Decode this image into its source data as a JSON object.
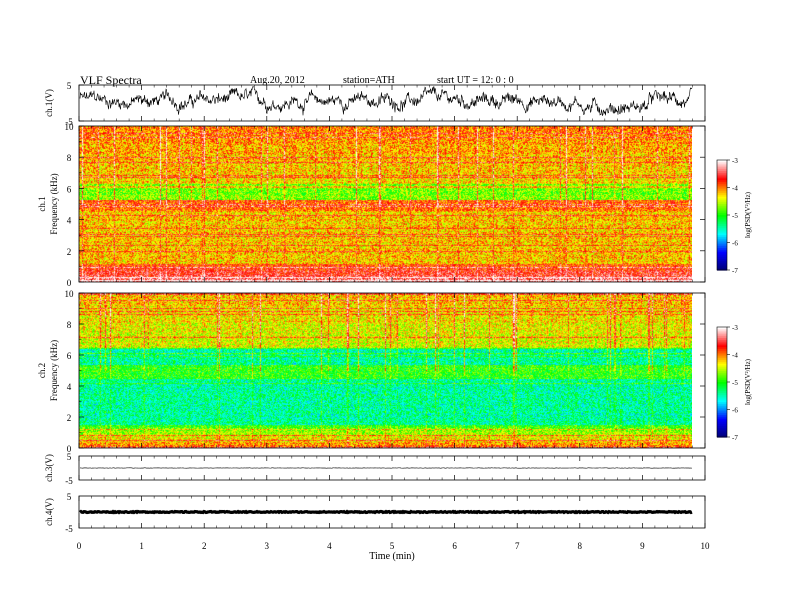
{
  "header": {
    "title": "VLF  Spectra",
    "date": "Aug.20, 2012",
    "station": "station=ATH",
    "start": "start  UT  =    12: 0   : 0"
  },
  "chart_data": [
    {
      "type": "line",
      "panel": "ch1-waveform",
      "ylabel": "ch.1(V)",
      "yticks": [
        "5",
        "-5"
      ],
      "ylim": [
        -5,
        5
      ],
      "trace_color": "#000000",
      "description_values": {
        "x_range_min": [
          0,
          9.8
        ],
        "approx_amplitude_V": [
          -3,
          4
        ]
      }
    },
    {
      "type": "heatmap",
      "panel": "ch1-spectrogram",
      "ylabel_channel": "ch.1",
      "ylabel": "Frequency  (kHz)",
      "yticks": [
        "0",
        "2",
        "4",
        "6",
        "8",
        "10"
      ],
      "ylim": [
        0,
        10
      ],
      "xlim": [
        0,
        9.8
      ],
      "zlabel": "log(PSD(V²/Hz)",
      "zlim": [
        -7,
        -3
      ],
      "zticks": [
        "-3",
        "-4",
        "-5",
        "-6",
        "-7"
      ]
    },
    {
      "type": "heatmap",
      "panel": "ch2-spectrogram",
      "ylabel_channel": "ch.2",
      "ylabel": "Frequency  (kHz)",
      "yticks": [
        "0",
        "2",
        "4",
        "6",
        "8",
        "10"
      ],
      "ylim": [
        0,
        10
      ],
      "xlim": [
        0,
        9.8
      ],
      "zlabel": "log(PSD(V²/Hz)",
      "zlim": [
        -7,
        -3
      ],
      "zticks": [
        "-3",
        "-4",
        "-5",
        "-6",
        "-7"
      ]
    },
    {
      "type": "line",
      "panel": "ch3-waveform",
      "ylabel": "ch.3(V)",
      "yticks": [
        "5",
        "-5"
      ],
      "ylim": [
        -5,
        5
      ],
      "approx_level_V": 0
    },
    {
      "type": "line",
      "panel": "ch4-waveform",
      "ylabel": "ch.4(V)",
      "yticks": [
        "5",
        "-5"
      ],
      "ylim": [
        -5,
        5
      ],
      "approx_level_V": 0
    }
  ],
  "x_axis": {
    "label": "Time  (min)",
    "ticks": [
      "0",
      "1",
      "2",
      "3",
      "4",
      "5",
      "6",
      "7",
      "8",
      "9",
      "10"
    ],
    "xlim": [
      0,
      10
    ]
  },
  "colormap": [
    "#000070",
    "#0000ff",
    "#00ffff",
    "#00ff00",
    "#ffff00",
    "#ff0000",
    "#ffffff"
  ]
}
